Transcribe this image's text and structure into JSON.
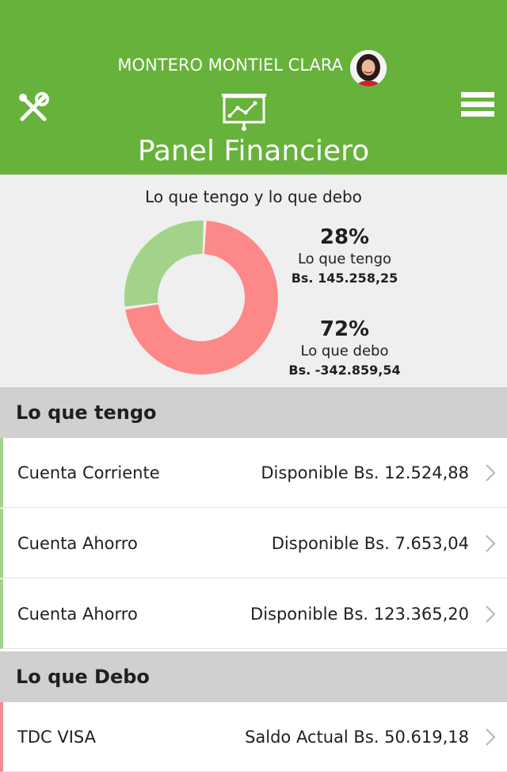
{
  "header": {
    "user_name": "MONTERO MONTIEL CLARA",
    "title": "Panel Financiero",
    "icons": {
      "settings": "tools-icon",
      "dashboard": "presentation-chart-icon",
      "menu": "hamburger-menu-icon"
    }
  },
  "summary": {
    "title": "Lo que tengo y lo que debo",
    "tengo": {
      "percent_label": "28%",
      "label": "Lo que tengo",
      "amount": "Bs. 145.258,25",
      "percent": 28,
      "color": "#a3d38a"
    },
    "debo": {
      "percent_label": "72%",
      "label": "Lo que debo",
      "amount": "Bs. -342.859,54",
      "percent": 72,
      "color": "#fd8888"
    }
  },
  "sections": {
    "tengo": {
      "title": "Lo que tengo",
      "rows": [
        {
          "name": "Cuenta Corriente",
          "amount": "Disponible Bs. 12.524,88"
        },
        {
          "name": "Cuenta Ahorro",
          "amount": "Disponible Bs. 7.653,04"
        },
        {
          "name": "Cuenta Ahorro",
          "amount": "Disponible Bs. 123.365,20"
        }
      ]
    },
    "debo": {
      "title": "Lo que Debo",
      "rows": [
        {
          "name": "TDC VISA",
          "amount": "Saldo Actual Bs. 50.619,18"
        }
      ]
    }
  }
}
